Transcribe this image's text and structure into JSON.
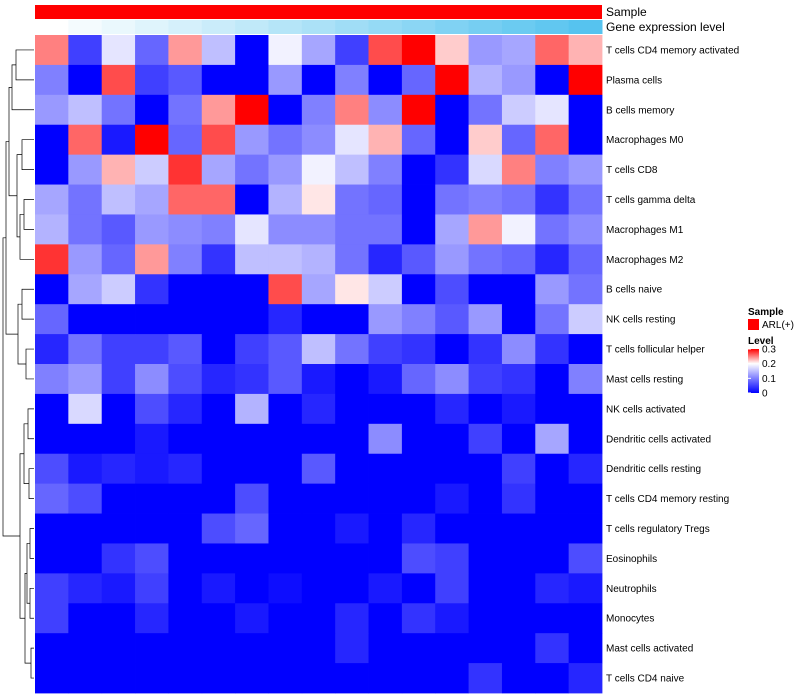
{
  "chart_data": {
    "type": "heatmap",
    "annotations": [
      {
        "label": "Sample",
        "color": "#ff0000"
      },
      {
        "label": "Gene expression level",
        "gradient": [
          "#ffffff",
          "#56c3ef"
        ]
      }
    ],
    "legend": {
      "placement": "right",
      "sample_title": "Sample",
      "sample_entry": "ARL(+)",
      "sample_color": "#ff0000",
      "level_title": "Level",
      "level_ticks": [
        "0.3",
        "0.2",
        "0.1",
        "0"
      ],
      "level_tick_values": [
        0.3,
        0.2,
        0.1,
        0
      ],
      "color_scale": {
        "min": 0,
        "mid": 0.2,
        "max": 0.3,
        "low": "#0000ff",
        "midColor": "#ffffff",
        "high": "#ff0000"
      }
    },
    "rows": [
      "T cells CD4 memory activated",
      "Plasma cells",
      "B cells memory",
      "Macrophages M0",
      "T cells CD8",
      "T cells gamma delta",
      "Macrophages M1",
      "Macrophages M2",
      "B cells naive",
      "NK cells resting",
      "T cells follicular helper",
      "Mast cells resting",
      "NK cells activated",
      "Dendritic cells activated",
      "Dendritic cells resting",
      "T cells CD4 memory resting",
      "T cells regulatory  Tregs",
      "Eosinophils",
      "Neutrophils",
      "Monocytes",
      "Mast cells activated",
      "T cells CD4 naive"
    ],
    "values": [
      [
        0.25,
        0.05,
        0.18,
        0.08,
        0.24,
        0.15,
        0.0,
        0.19,
        0.13,
        0.05,
        0.27,
        0.3,
        0.22,
        0.12,
        0.13,
        0.26,
        0.23
      ],
      [
        0.1,
        0.0,
        0.27,
        0.05,
        0.07,
        0.0,
        0.0,
        0.12,
        0.0,
        0.1,
        0.0,
        0.08,
        0.3,
        0.14,
        0.12,
        0.0,
        0.3
      ],
      [
        0.12,
        0.15,
        0.09,
        0.0,
        0.09,
        0.24,
        0.3,
        0.0,
        0.1,
        0.25,
        0.11,
        0.3,
        0.0,
        0.09,
        0.16,
        0.18,
        0.0
      ],
      [
        0.0,
        0.26,
        0.02,
        0.3,
        0.08,
        0.27,
        0.12,
        0.09,
        0.11,
        0.18,
        0.23,
        0.08,
        0.0,
        0.22,
        0.08,
        0.26,
        0.0
      ],
      [
        0.0,
        0.12,
        0.23,
        0.16,
        0.28,
        0.13,
        0.09,
        0.12,
        0.19,
        0.15,
        0.1,
        0.0,
        0.04,
        0.17,
        0.25,
        0.1,
        0.12
      ],
      [
        0.13,
        0.09,
        0.15,
        0.13,
        0.26,
        0.26,
        0.0,
        0.14,
        0.21,
        0.09,
        0.08,
        0.0,
        0.09,
        0.1,
        0.09,
        0.04,
        0.09
      ],
      [
        0.14,
        0.09,
        0.07,
        0.12,
        0.11,
        0.1,
        0.18,
        0.11,
        0.11,
        0.09,
        0.09,
        0.0,
        0.13,
        0.24,
        0.19,
        0.09,
        0.11
      ],
      [
        0.28,
        0.12,
        0.08,
        0.24,
        0.1,
        0.04,
        0.15,
        0.15,
        0.14,
        0.09,
        0.03,
        0.07,
        0.12,
        0.09,
        0.08,
        0.03,
        0.08
      ],
      [
        0.0,
        0.13,
        0.16,
        0.04,
        0.0,
        0.0,
        0.0,
        0.27,
        0.13,
        0.21,
        0.16,
        0.0,
        0.06,
        0.0,
        0.0,
        0.12,
        0.09
      ],
      [
        0.08,
        0.0,
        0.0,
        0.0,
        0.0,
        0.0,
        0.0,
        0.03,
        0.0,
        0.0,
        0.12,
        0.1,
        0.07,
        0.12,
        0.0,
        0.09,
        0.16
      ],
      [
        0.03,
        0.09,
        0.05,
        0.05,
        0.07,
        0.0,
        0.05,
        0.07,
        0.15,
        0.09,
        0.05,
        0.04,
        0.0,
        0.04,
        0.11,
        0.04,
        0.0
      ],
      [
        0.1,
        0.12,
        0.05,
        0.11,
        0.06,
        0.03,
        0.04,
        0.07,
        0.02,
        0.0,
        0.02,
        0.08,
        0.11,
        0.05,
        0.04,
        0.0,
        0.1
      ],
      [
        0.0,
        0.17,
        0.0,
        0.06,
        0.03,
        0.0,
        0.14,
        0.0,
        0.03,
        0.0,
        0.0,
        0.0,
        0.03,
        0.0,
        0.02,
        0.0,
        0.0
      ],
      [
        0.0,
        0.0,
        0.0,
        0.02,
        0.0,
        0.0,
        0.0,
        0.0,
        0.0,
        0.0,
        0.11,
        0.0,
        0.0,
        0.05,
        0.0,
        0.13,
        0.0
      ],
      [
        0.06,
        0.02,
        0.03,
        0.02,
        0.03,
        0.0,
        0.0,
        0.0,
        0.07,
        0.0,
        0.0,
        0.0,
        0.0,
        0.0,
        0.05,
        0.0,
        0.03
      ],
      [
        0.08,
        0.06,
        0.0,
        0.0,
        0.0,
        0.0,
        0.06,
        0.0,
        0.0,
        0.0,
        0.0,
        0.0,
        0.02,
        0.0,
        0.04,
        0.0,
        0.0
      ],
      [
        0.0,
        0.0,
        0.0,
        0.0,
        0.0,
        0.06,
        0.08,
        0.0,
        0.0,
        0.02,
        0.0,
        0.03,
        0.0,
        0.0,
        0.0,
        0.0,
        0.0
      ],
      [
        0.0,
        0.0,
        0.04,
        0.06,
        0.0,
        0.0,
        0.0,
        0.0,
        0.0,
        0.0,
        0.0,
        0.06,
        0.05,
        0.0,
        0.0,
        0.0,
        0.06
      ],
      [
        0.05,
        0.03,
        0.02,
        0.05,
        0.0,
        0.02,
        0.0,
        0.01,
        0.0,
        0.0,
        0.02,
        0.0,
        0.05,
        0.0,
        0.0,
        0.03,
        0.02
      ],
      [
        0.05,
        0.0,
        0.0,
        0.03,
        0.0,
        0.0,
        0.02,
        0.0,
        0.0,
        0.03,
        0.0,
        0.04,
        0.02,
        0.0,
        0.0,
        0.0,
        0.0
      ],
      [
        0.0,
        0.0,
        0.0,
        0.0,
        0.0,
        0.0,
        0.0,
        0.0,
        0.0,
        0.03,
        0.0,
        0.0,
        0.0,
        0.0,
        0.0,
        0.04,
        0.0
      ],
      [
        0.0,
        0.0,
        0.0,
        0.0,
        0.0,
        0.0,
        0.0,
        0.0,
        0.0,
        0.0,
        0.0,
        0.0,
        0.0,
        0.04,
        0.0,
        0.0,
        0.03
      ]
    ]
  }
}
